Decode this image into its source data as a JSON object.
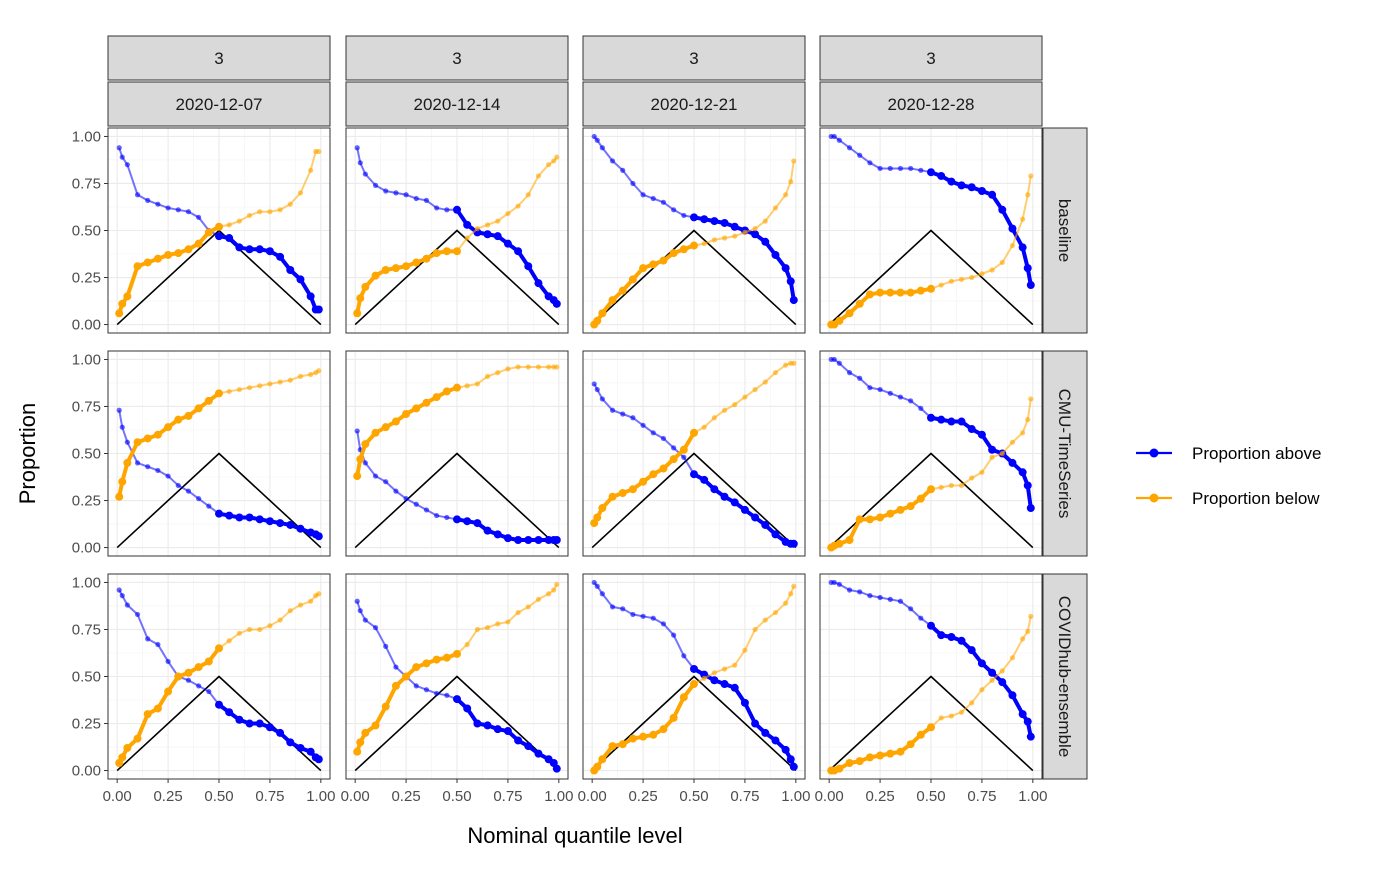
{
  "chart_data": {
    "type": "line",
    "xlabel": "Nominal quantile level",
    "ylabel": "Proportion",
    "xlim": [
      0,
      1
    ],
    "ylim": [
      0,
      1
    ],
    "x_ticks": [
      "0.00",
      "0.25",
      "0.50",
      "0.75",
      "1.00"
    ],
    "y_ticks": [
      "0.00",
      "0.25",
      "0.50",
      "0.75",
      "1.00"
    ],
    "facet_cols": [
      {
        "ahead": "3",
        "date": "2020-12-07"
      },
      {
        "ahead": "3",
        "date": "2020-12-14"
      },
      {
        "ahead": "3",
        "date": "2020-12-21"
      },
      {
        "ahead": "3",
        "date": "2020-12-28"
      }
    ],
    "facet_rows": [
      "baseline",
      "CMU-TimeSeries",
      "COVIDhub-ensemble"
    ],
    "legend": {
      "placement": "right",
      "entries": [
        {
          "label": "Proportion above",
          "color": "#0000ff"
        },
        {
          "label": "Proportion below",
          "color": "#ffa500"
        }
      ]
    },
    "reference_line": {
      "x": [
        0,
        0.5,
        1
      ],
      "y": [
        0,
        0.5,
        0
      ],
      "color": "#000000"
    },
    "quantile_levels": [
      0.01,
      0.025,
      0.05,
      0.1,
      0.15,
      0.2,
      0.25,
      0.3,
      0.35,
      0.4,
      0.45,
      0.5,
      0.55,
      0.6,
      0.65,
      0.7,
      0.75,
      0.8,
      0.85,
      0.9,
      0.95,
      0.975,
      0.99
    ],
    "panels": [
      {
        "row": 0,
        "col": 0,
        "above": [
          0.94,
          0.89,
          0.85,
          0.69,
          0.66,
          0.64,
          0.62,
          0.61,
          0.6,
          0.57,
          0.5,
          0.47,
          0.46,
          0.41,
          0.4,
          0.4,
          0.39,
          0.36,
          0.29,
          0.24,
          0.15,
          0.08,
          0.08
        ],
        "below": [
          0.06,
          0.11,
          0.15,
          0.31,
          0.33,
          0.35,
          0.37,
          0.38,
          0.4,
          0.43,
          0.49,
          0.52,
          0.53,
          0.55,
          0.58,
          0.6,
          0.6,
          0.61,
          0.64,
          0.7,
          0.82,
          0.92,
          0.92
        ]
      },
      {
        "row": 0,
        "col": 1,
        "above": [
          0.94,
          0.86,
          0.8,
          0.74,
          0.71,
          0.7,
          0.69,
          0.67,
          0.66,
          0.62,
          0.61,
          0.61,
          0.53,
          0.49,
          0.48,
          0.47,
          0.43,
          0.39,
          0.31,
          0.22,
          0.15,
          0.13,
          0.11
        ],
        "below": [
          0.06,
          0.14,
          0.2,
          0.26,
          0.29,
          0.3,
          0.31,
          0.33,
          0.35,
          0.38,
          0.39,
          0.39,
          0.46,
          0.51,
          0.53,
          0.55,
          0.59,
          0.63,
          0.69,
          0.79,
          0.85,
          0.87,
          0.89
        ]
      },
      {
        "row": 0,
        "col": 2,
        "above": [
          1.0,
          0.98,
          0.94,
          0.87,
          0.82,
          0.75,
          0.69,
          0.67,
          0.65,
          0.61,
          0.58,
          0.57,
          0.56,
          0.55,
          0.54,
          0.52,
          0.5,
          0.48,
          0.44,
          0.37,
          0.3,
          0.23,
          0.13
        ],
        "below": [
          0.0,
          0.02,
          0.06,
          0.13,
          0.18,
          0.24,
          0.3,
          0.32,
          0.34,
          0.38,
          0.4,
          0.42,
          0.43,
          0.45,
          0.46,
          0.47,
          0.49,
          0.51,
          0.55,
          0.62,
          0.69,
          0.76,
          0.87
        ]
      },
      {
        "row": 0,
        "col": 3,
        "above": [
          1.0,
          1.0,
          0.98,
          0.94,
          0.9,
          0.86,
          0.83,
          0.83,
          0.83,
          0.83,
          0.82,
          0.81,
          0.79,
          0.76,
          0.74,
          0.73,
          0.71,
          0.69,
          0.61,
          0.51,
          0.41,
          0.3,
          0.21
        ],
        "below": [
          0.0,
          0.0,
          0.02,
          0.06,
          0.11,
          0.16,
          0.17,
          0.17,
          0.17,
          0.17,
          0.18,
          0.19,
          0.21,
          0.23,
          0.24,
          0.25,
          0.27,
          0.29,
          0.33,
          0.42,
          0.56,
          0.69,
          0.79
        ]
      },
      {
        "row": 1,
        "col": 0,
        "above": [
          0.73,
          0.64,
          0.56,
          0.45,
          0.43,
          0.41,
          0.38,
          0.33,
          0.3,
          0.26,
          0.22,
          0.18,
          0.17,
          0.16,
          0.16,
          0.15,
          0.14,
          0.13,
          0.12,
          0.1,
          0.08,
          0.07,
          0.06
        ],
        "below": [
          0.27,
          0.35,
          0.45,
          0.56,
          0.58,
          0.6,
          0.64,
          0.68,
          0.7,
          0.74,
          0.78,
          0.82,
          0.83,
          0.84,
          0.85,
          0.86,
          0.87,
          0.88,
          0.89,
          0.91,
          0.92,
          0.93,
          0.94
        ]
      },
      {
        "row": 1,
        "col": 1,
        "above": [
          0.62,
          0.52,
          0.45,
          0.38,
          0.35,
          0.3,
          0.26,
          0.23,
          0.2,
          0.17,
          0.16,
          0.15,
          0.14,
          0.13,
          0.09,
          0.07,
          0.05,
          0.04,
          0.04,
          0.04,
          0.04,
          0.04,
          0.04
        ],
        "below": [
          0.38,
          0.47,
          0.55,
          0.61,
          0.64,
          0.67,
          0.71,
          0.74,
          0.77,
          0.8,
          0.83,
          0.85,
          0.86,
          0.87,
          0.91,
          0.93,
          0.95,
          0.96,
          0.96,
          0.96,
          0.96,
          0.96,
          0.96
        ]
      },
      {
        "row": 1,
        "col": 2,
        "above": [
          0.87,
          0.84,
          0.79,
          0.73,
          0.71,
          0.69,
          0.65,
          0.61,
          0.58,
          0.53,
          0.48,
          0.39,
          0.36,
          0.31,
          0.27,
          0.24,
          0.2,
          0.16,
          0.12,
          0.07,
          0.03,
          0.02,
          0.02
        ],
        "below": [
          0.13,
          0.16,
          0.21,
          0.27,
          0.29,
          0.31,
          0.35,
          0.39,
          0.42,
          0.47,
          0.52,
          0.61,
          0.64,
          0.69,
          0.73,
          0.76,
          0.8,
          0.84,
          0.88,
          0.93,
          0.97,
          0.98,
          0.98
        ]
      },
      {
        "row": 1,
        "col": 3,
        "above": [
          1.0,
          1.0,
          0.98,
          0.93,
          0.9,
          0.85,
          0.84,
          0.82,
          0.8,
          0.78,
          0.74,
          0.69,
          0.68,
          0.67,
          0.67,
          0.63,
          0.6,
          0.52,
          0.5,
          0.45,
          0.4,
          0.33,
          0.21
        ],
        "below": [
          0.0,
          0.01,
          0.02,
          0.04,
          0.15,
          0.15,
          0.16,
          0.18,
          0.2,
          0.22,
          0.26,
          0.31,
          0.32,
          0.33,
          0.33,
          0.37,
          0.4,
          0.48,
          0.5,
          0.56,
          0.61,
          0.68,
          0.79
        ]
      },
      {
        "row": 2,
        "col": 0,
        "above": [
          0.96,
          0.93,
          0.88,
          0.83,
          0.7,
          0.67,
          0.58,
          0.5,
          0.48,
          0.45,
          0.42,
          0.35,
          0.31,
          0.27,
          0.25,
          0.25,
          0.23,
          0.2,
          0.15,
          0.12,
          0.1,
          0.07,
          0.06
        ],
        "below": [
          0.04,
          0.07,
          0.12,
          0.17,
          0.3,
          0.33,
          0.42,
          0.5,
          0.52,
          0.55,
          0.58,
          0.65,
          0.69,
          0.73,
          0.75,
          0.75,
          0.77,
          0.8,
          0.85,
          0.88,
          0.9,
          0.93,
          0.94
        ]
      },
      {
        "row": 2,
        "col": 1,
        "above": [
          0.9,
          0.85,
          0.8,
          0.76,
          0.66,
          0.55,
          0.5,
          0.45,
          0.43,
          0.41,
          0.4,
          0.38,
          0.33,
          0.25,
          0.24,
          0.22,
          0.21,
          0.16,
          0.13,
          0.09,
          0.06,
          0.04,
          0.01
        ],
        "below": [
          0.1,
          0.15,
          0.2,
          0.24,
          0.34,
          0.45,
          0.5,
          0.55,
          0.57,
          0.59,
          0.6,
          0.62,
          0.67,
          0.75,
          0.76,
          0.78,
          0.79,
          0.84,
          0.87,
          0.91,
          0.94,
          0.96,
          0.99
        ]
      },
      {
        "row": 2,
        "col": 2,
        "above": [
          1.0,
          0.98,
          0.94,
          0.87,
          0.86,
          0.83,
          0.82,
          0.81,
          0.78,
          0.72,
          0.61,
          0.54,
          0.51,
          0.48,
          0.46,
          0.44,
          0.36,
          0.25,
          0.2,
          0.16,
          0.11,
          0.06,
          0.02
        ],
        "below": [
          0.0,
          0.02,
          0.06,
          0.13,
          0.14,
          0.17,
          0.18,
          0.19,
          0.22,
          0.28,
          0.39,
          0.46,
          0.49,
          0.52,
          0.54,
          0.56,
          0.64,
          0.75,
          0.8,
          0.84,
          0.89,
          0.94,
          0.98
        ]
      },
      {
        "row": 2,
        "col": 3,
        "above": [
          1.0,
          1.0,
          0.99,
          0.96,
          0.95,
          0.93,
          0.92,
          0.91,
          0.9,
          0.86,
          0.81,
          0.77,
          0.72,
          0.71,
          0.69,
          0.64,
          0.57,
          0.52,
          0.47,
          0.4,
          0.3,
          0.26,
          0.18
        ],
        "below": [
          0.0,
          0.0,
          0.01,
          0.04,
          0.05,
          0.07,
          0.08,
          0.09,
          0.1,
          0.14,
          0.19,
          0.23,
          0.28,
          0.29,
          0.31,
          0.36,
          0.43,
          0.48,
          0.53,
          0.6,
          0.7,
          0.74,
          0.82
        ]
      }
    ]
  }
}
